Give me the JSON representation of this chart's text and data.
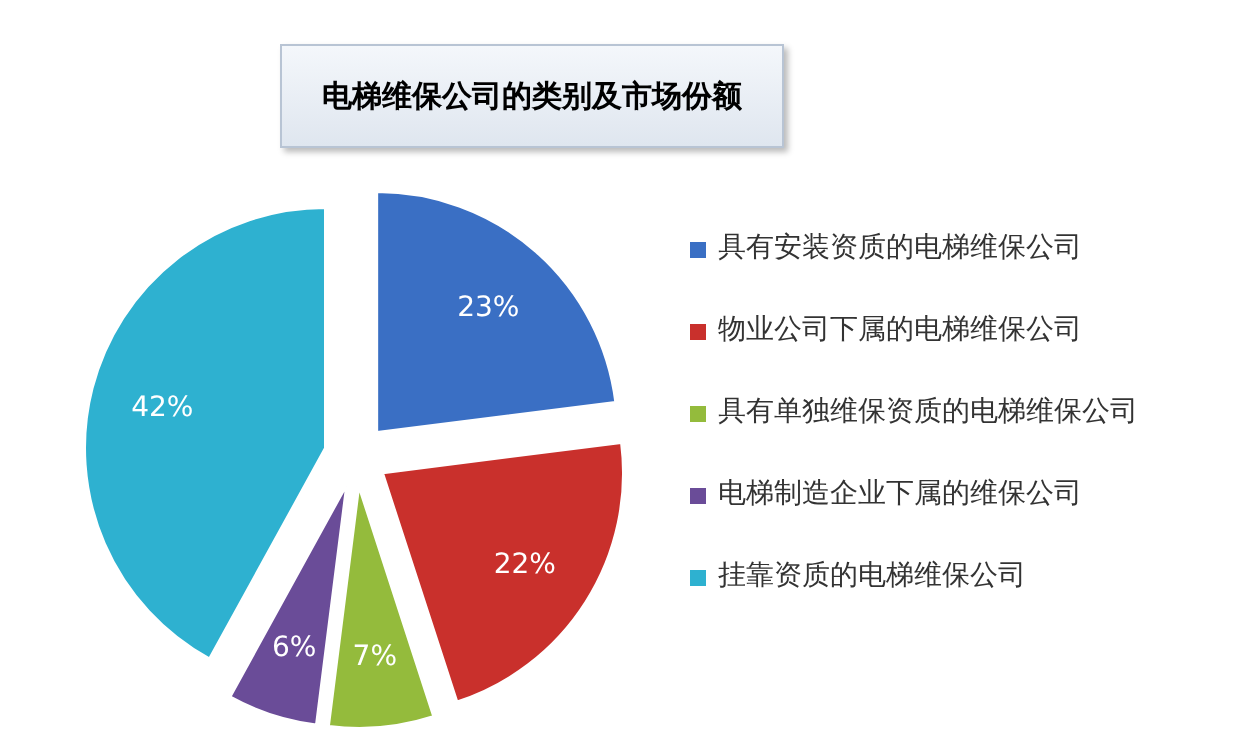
{
  "chart_data": {
    "type": "pie",
    "title": "电梯维保公司的类别及市场份额",
    "categories": [
      "具有安装资质的电梯维保公司",
      "物业公司下属的电梯维保公司",
      "具有单独维保资质的电梯维保公司",
      "电梯制造企业下属的维保公司",
      "挂靠资质的电梯维保公司"
    ],
    "values": [
      23,
      22,
      7,
      6,
      42
    ],
    "colors": [
      "#3a6fc4",
      "#c9302c",
      "#94bb3c",
      "#6a4c98",
      "#2eb1d0"
    ],
    "value_labels": [
      "23%",
      "22%",
      "7%",
      "6%",
      "42%"
    ],
    "legend": "right"
  }
}
